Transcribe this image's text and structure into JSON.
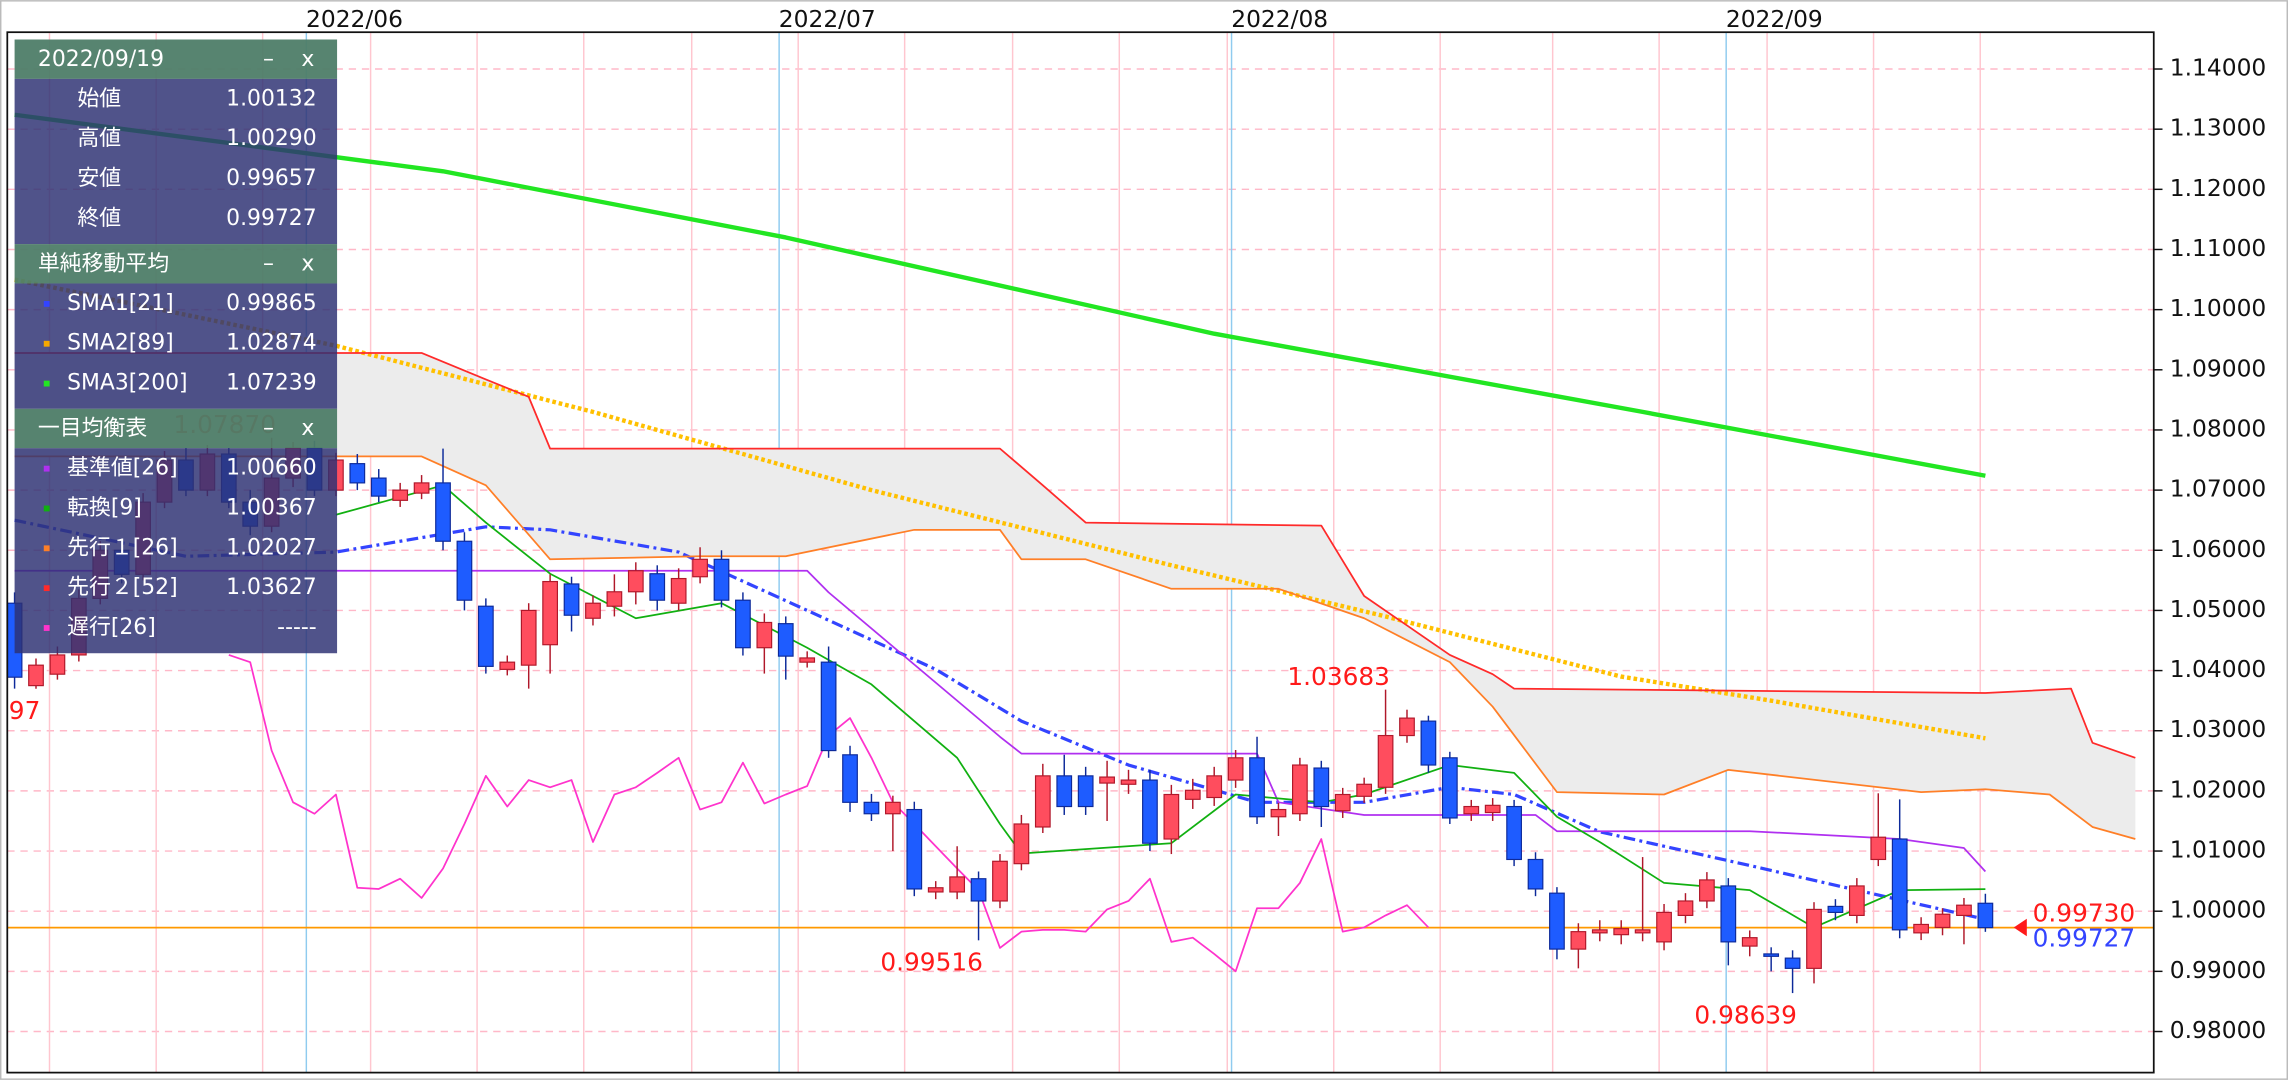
{
  "chart_data": {
    "type": "candlestick",
    "xlim": [
      -0.34,
      99.86
    ],
    "ylim": [
      0.97317,
      1.14612
    ],
    "yticks": [
      {
        "value": 0.98,
        "label": "0.98000"
      },
      {
        "value": 0.99,
        "label": "0.99000"
      },
      {
        "value": 1,
        "label": "1.00000"
      },
      {
        "value": 1.01,
        "label": "1.01000"
      },
      {
        "value": 1.02,
        "label": "1.02000"
      },
      {
        "value": 1.03,
        "label": "1.03000"
      },
      {
        "value": 1.04,
        "label": "1.04000"
      },
      {
        "value": 1.05,
        "label": "1.05000"
      },
      {
        "value": 1.06,
        "label": "1.06000"
      },
      {
        "value": 1.07,
        "label": "1.07000"
      },
      {
        "value": 1.08,
        "label": "1.08000"
      },
      {
        "value": 1.09,
        "label": "1.09000"
      },
      {
        "value": 1.1,
        "label": "1.10000"
      },
      {
        "value": 1.11,
        "label": "1.11000"
      },
      {
        "value": 1.12,
        "label": "1.12000"
      },
      {
        "value": 1.13,
        "label": "1.13000"
      },
      {
        "value": 1.14,
        "label": "1.14000"
      }
    ],
    "xticks": [
      {
        "value": 13.62,
        "label": "2022/06"
      },
      {
        "value": 35.69,
        "label": "2022/07"
      },
      {
        "value": 56.81,
        "label": "2022/08"
      },
      {
        "value": 79.9,
        "label": "2022/09"
      }
    ],
    "xgrid": [
      1.63,
      6.61,
      11.58,
      16.62,
      21.59,
      26.57,
      31.61,
      36.58,
      41.55,
      46.59,
      51.57,
      56.61,
      61.58,
      66.55,
      71.8,
      76.77,
      81.81,
      86.78,
      91.76
    ],
    "grid": true,
    "up_color": "#ff4d5e",
    "down_color": "#1e5cff",
    "open": [
      1.0512,
      1.0375,
      1.0394,
      1.0426,
      1.052,
      1.06,
      1.056,
      1.068,
      1.075,
      1.07,
      1.076,
      1.068,
      1.064,
      1.072,
      1.077,
      1.07,
      1.0744,
      1.072,
      1.0683,
      1.0695,
      1.0712,
      1.0615,
      1.0507,
      1.0402,
      1.0409,
      1.0443,
      1.0544,
      1.0487,
      1.0507,
      1.0531,
      1.0561,
      1.0512,
      1.0556,
      1.0585,
      1.0517,
      1.0438,
      1.0478,
      1.0414,
      1.0414,
      1.026,
      1.0181,
      1.0162,
      1.0169,
      1.0032,
      1.0032,
      1.0054,
      1.0017,
      1.0079,
      1.014,
      1.0225,
      1.0225,
      1.0213,
      1.0211,
      1.0218,
      1.012,
      1.0186,
      1.0189,
      1.0218,
      1.0255,
      1.0157,
      1.0162,
      1.0238,
      1.0167,
      1.0191,
      1.0206,
      1.0292,
      1.0316,
      1.0255,
      1.0162,
      1.0164,
      1.0174,
      1.0086,
      1.003,
      0.9937,
      0.9964,
      0.9961,
      0.9964,
      0.9949,
      0.9993,
      1.0017,
      1.0042,
      0.9942,
      0.9929,
      0.9922,
      0.9905,
      1.0008,
      0.9993,
      1.0086,
      1.012,
      0.9964,
      0.9973,
      0.9993,
      1.00132
    ],
    "high": [
      1.053,
      1.042,
      1.044,
      1.0535,
      1.0615,
      1.062,
      1.0695,
      1.0765,
      1.077,
      1.0775,
      1.077,
      1.07,
      1.0787,
      1.078,
      1.0782,
      1.0762,
      1.076,
      1.0735,
      1.0712,
      1.0725,
      1.0769,
      1.063,
      1.052,
      1.0425,
      1.0512,
      1.056,
      1.0556,
      1.0525,
      1.056,
      1.058,
      1.0575,
      1.057,
      1.0605,
      1.06,
      1.053,
      1.0495,
      1.049,
      1.0432,
      1.044,
      1.0275,
      1.0195,
      1.0192,
      1.0182,
      1.005,
      1.0108,
      1.0066,
      1.0095,
      1.016,
      1.0245,
      1.026,
      1.024,
      1.025,
      1.0235,
      1.0235,
      1.021,
      1.022,
      1.024,
      1.0268,
      1.029,
      1.018,
      1.0255,
      1.025,
      1.0205,
      1.0222,
      1.03683,
      1.0335,
      1.0325,
      1.0265,
      1.0185,
      1.0188,
      1.0185,
      1.0098,
      1.004,
      0.998,
      0.9985,
      0.9985,
      1.009,
      1.0012,
      1.003,
      1.0065,
      1.0055,
      0.9968,
      0.994,
      0.9935,
      1.0015,
      1.002,
      1.0055,
      1.0196,
      1.0186,
      0.999,
      1.0005,
      1.0022,
      1.0029
    ],
    "low": [
      1.037,
      1.03697,
      1.0385,
      1.0415,
      1.051,
      1.0545,
      1.055,
      1.067,
      1.069,
      1.069,
      1.067,
      1.0625,
      1.063,
      1.0705,
      1.069,
      1.069,
      1.07,
      1.068,
      1.0672,
      1.0685,
      1.06,
      1.05,
      1.0395,
      1.0392,
      1.037,
      1.0395,
      1.0465,
      1.0475,
      1.049,
      1.051,
      1.05,
      1.05,
      1.0545,
      1.0505,
      1.0425,
      1.0395,
      1.0385,
      1.0405,
      1.0255,
      1.0165,
      1.015,
      1.01,
      1.0025,
      1.002,
      1.002,
      0.99516,
      1.0005,
      1.0068,
      1.013,
      1.016,
      1.016,
      1.015,
      1.0195,
      1.01,
      1.0095,
      1.017,
      1.0175,
      1.0205,
      1.0145,
      1.0125,
      1.015,
      1.014,
      1.0155,
      1.018,
      1.0195,
      1.028,
      1.023,
      1.0145,
      1.015,
      1.015,
      1.0075,
      1.0025,
      0.992,
      0.9905,
      0.995,
      0.9945,
      0.995,
      0.9935,
      0.998,
      1.0005,
      0.991,
      0.9925,
      0.99,
      0.98639,
      0.988,
      0.9985,
      0.998,
      1.0075,
      0.9955,
      0.9952,
      0.996,
      0.9945,
      0.99657
    ],
    "close": [
      1.0389,
      1.0409,
      1.0426,
      1.052,
      1.06,
      1.056,
      1.068,
      1.075,
      1.07,
      1.076,
      1.068,
      1.064,
      1.072,
      1.077,
      1.07,
      1.075,
      1.0712,
      1.069,
      1.07,
      1.0712,
      1.0615,
      1.0517,
      1.0407,
      1.0414,
      1.05,
      1.0548,
      1.0492,
      1.0512,
      1.0531,
      1.0566,
      1.0517,
      1.0553,
      1.0585,
      1.0517,
      1.0438,
      1.048,
      1.0424,
      1.0421,
      1.0267,
      1.0181,
      1.0162,
      1.0181,
      1.0037,
      1.0039,
      1.0057,
      1.0017,
      1.0083,
      1.0145,
      1.0225,
      1.0174,
      1.0174,
      1.0223,
      1.0218,
      1.0113,
      1.0194,
      1.0201,
      1.0225,
      1.0255,
      1.0157,
      1.0169,
      1.0243,
      1.0174,
      1.0194,
      1.0211,
      1.0292,
      1.0321,
      1.0243,
      1.0155,
      1.0174,
      1.0176,
      1.0086,
      1.0037,
      0.9937,
      0.9966,
      0.9969,
      0.9971,
      0.9969,
      0.9998,
      1.0017,
      1.0052,
      0.9949,
      0.9956,
      0.9925,
      0.9905,
      1.0003,
      0.9998,
      1.0042,
      1.0123,
      0.9969,
      0.9978,
      0.9995,
      1.001,
      0.99727
    ],
    "annotations": [
      {
        "x": 1,
        "at": "low",
        "label": "97"
      },
      {
        "x": 12,
        "at": "high",
        "label": "1.07870"
      },
      {
        "x": 45,
        "at": "low",
        "label": "0.99516"
      },
      {
        "x": 64,
        "at": "high",
        "label": "1.03683"
      },
      {
        "x": 83,
        "at": "low",
        "label": "0.98639"
      }
    ],
    "annotation_color": "#ff1a1a",
    "series": [
      {
        "name": "SMA1[21]",
        "color": "#3344ff",
        "style": "dashdot",
        "last": "0.99865",
        "x": [
          0,
          8,
          15,
          22,
          25,
          31,
          37,
          43,
          47,
          52,
          58,
          63,
          67,
          70,
          74,
          81,
          86,
          92
        ],
        "values": [
          1.065,
          1.059,
          1.0597,
          1.0639,
          1.0634,
          1.0597,
          1.05,
          1.0402,
          1.0316,
          1.0243,
          1.0181,
          1.0181,
          1.0206,
          1.0194,
          1.0132,
          1.0076,
          1.0035,
          0.99865
        ]
      },
      {
        "name": "SMA2[89]",
        "color": "#ffc000",
        "style": "dotted",
        "legend_color": "#f5a800",
        "last": "1.02874",
        "x": [
          0,
          15,
          27,
          40,
          54,
          64,
          75,
          82,
          92
        ],
        "values": [
          1.105,
          1.094,
          1.083,
          1.07,
          1.0575,
          1.049,
          1.039,
          1.035,
          1.02874
        ]
      },
      {
        "name": "SMA3[200]",
        "color": "#22e622",
        "style": "thick",
        "last": "1.07239",
        "x": [
          0,
          20,
          36,
          56,
          76,
          92
        ],
        "values": [
          1.1324,
          1.123,
          1.112,
          1.096,
          1.083,
          1.07239
        ]
      },
      {
        "name": "基準値[26]",
        "color": "#b030f0",
        "style": "solid",
        "last": "1.00660",
        "x": [
          0,
          15,
          37,
          38,
          46,
          47,
          58,
          59,
          63,
          71,
          72,
          81,
          88,
          91,
          92
        ],
        "values": [
          1.0566,
          1.0566,
          1.0566,
          1.053,
          1.029,
          1.0262,
          1.0262,
          1.0181,
          1.016,
          1.016,
          1.0133,
          1.0133,
          1.012,
          1.0105,
          1.0066
        ]
      },
      {
        "name": "転換[9]",
        "color": "#11b011",
        "style": "solid",
        "last": "1.00367",
        "x": [
          15,
          20,
          22,
          25,
          29,
          33,
          37,
          40,
          44,
          46,
          47,
          54,
          57,
          61,
          63,
          67,
          70,
          72,
          74,
          77,
          81,
          84,
          88,
          92
        ],
        "values": [
          1.0659,
          1.0708,
          1.0646,
          1.0561,
          1.0487,
          1.0512,
          1.0438,
          1.0377,
          1.0255,
          1.0145,
          1.0096,
          1.0113,
          1.0194,
          1.0181,
          1.0194,
          1.0243,
          1.023,
          1.0157,
          1.0115,
          1.0047,
          1.0035,
          0.9973,
          1.0035,
          1.00367
        ]
      },
      {
        "name": "先行１[26]",
        "color": "#ff7f27",
        "style": "solid",
        "last": "1.02027",
        "x": [
          0,
          15,
          19,
          22,
          25,
          32,
          36,
          42,
          46,
          47,
          50,
          54,
          59,
          63,
          67,
          69,
          72,
          77,
          80,
          89,
          92,
          95,
          97,
          99
        ],
        "values": [
          1.0756,
          1.0756,
          1.0756,
          1.0708,
          1.0585,
          1.059,
          1.059,
          1.0634,
          1.0634,
          1.0585,
          1.0585,
          1.0536,
          1.0536,
          1.0487,
          1.0414,
          1.034,
          1.0198,
          1.0194,
          1.0235,
          1.0198,
          1.02027,
          1.0194,
          1.014,
          1.012
        ]
      },
      {
        "name": "先行２[52]",
        "color": "#ff2a2a",
        "style": "solid",
        "last": "1.03627",
        "x": [
          0,
          15,
          19,
          22,
          24,
          25,
          46,
          48,
          50,
          61,
          63,
          65,
          67,
          69,
          70,
          92,
          96,
          97,
          99
        ],
        "values": [
          1.0928,
          1.0928,
          1.0928,
          1.0884,
          1.0855,
          1.0769,
          1.0769,
          1.0708,
          1.0646,
          1.0641,
          1.0524,
          1.0475,
          1.0426,
          1.0394,
          1.037,
          1.03627,
          1.037,
          1.028,
          1.0255
        ]
      },
      {
        "name": "遅行[26]",
        "color": "#ff33cc",
        "style": "solid",
        "last": "-----",
        "x": [
          10,
          11,
          12,
          13,
          14,
          15,
          16,
          17,
          18,
          19,
          20,
          21,
          22,
          23,
          24,
          25,
          26,
          27,
          28,
          29,
          30,
          31,
          32,
          33,
          34,
          35,
          36,
          37,
          38,
          39,
          40,
          41,
          42,
          43,
          44,
          45,
          46,
          47,
          48,
          49,
          50,
          51,
          52,
          53,
          54,
          55,
          56,
          57,
          58,
          59,
          60,
          61,
          62,
          63,
          64,
          65,
          66
        ],
        "values": [
          1.0426,
          1.0414,
          1.0267,
          1.0181,
          1.0162,
          1.0194,
          1.0039,
          1.0037,
          1.0054,
          1.0022,
          1.0071,
          1.0145,
          1.0225,
          1.0174,
          1.0218,
          1.0206,
          1.0218,
          1.0115,
          1.0194,
          1.0206,
          1.023,
          1.0255,
          1.0169,
          1.0181,
          1.0247,
          1.0179,
          1.0194,
          1.0208,
          1.0292,
          1.0321,
          1.0255,
          1.0181,
          1.0145,
          1.0108,
          1.0071,
          1.0035,
          0.9939,
          0.9966,
          0.9969,
          0.9969,
          0.9966,
          1.0003,
          1.0017,
          1.0054,
          0.9949,
          0.9956,
          0.9929,
          0.99,
          1.0005,
          1.0005,
          1.0047,
          1.012,
          0.9966,
          0.9973,
          0.9993,
          1.001,
          0.9973
        ]
      }
    ],
    "cloud": {
      "series": [
        5,
        6
      ],
      "fill": "#ececec"
    },
    "price_line_color": "#ff9900",
    "price_labels": [
      {
        "value": 0.9973,
        "label": "0.99730",
        "color": "#ff1a1a"
      },
      {
        "value": 0.99727,
        "color": "#3344ff"
      }
    ]
  },
  "panel": {
    "date": "2022/09/19",
    "buttons": [
      "–",
      "x"
    ],
    "ohlc": [
      {
        "label": "始値",
        "value": "1.00132"
      },
      {
        "label": "高値",
        "value": "1.00290"
      },
      {
        "label": "安値",
        "value": "0.99657"
      },
      {
        "label": "終値",
        "value": "0.99727"
      }
    ],
    "groups": [
      {
        "title": "単純移動平均",
        "series": [
          0,
          1,
          2
        ]
      },
      {
        "title": "一目均衡表",
        "series": [
          3,
          4,
          5,
          6,
          7
        ]
      }
    ]
  }
}
